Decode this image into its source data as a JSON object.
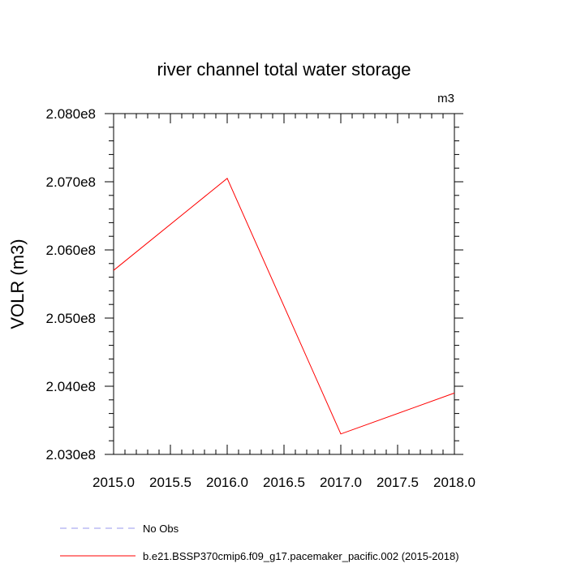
{
  "chart_data": {
    "type": "line",
    "title": "river channel total water storage",
    "unit_label": "m3",
    "ylabel": "VOLR  (m3)",
    "xlabel": "",
    "xlim": [
      2015.0,
      2018.0
    ],
    "ylim": [
      203000000,
      208000000
    ],
    "x_ticks": [
      2015.0,
      2015.5,
      2016.0,
      2016.5,
      2017.0,
      2017.5,
      2018.0
    ],
    "x_tick_labels": [
      "2015.0",
      "2015.5",
      "2016.0",
      "2016.5",
      "2017.0",
      "2017.5",
      "2018.0"
    ],
    "y_ticks": [
      203000000,
      204000000,
      205000000,
      206000000,
      207000000,
      208000000
    ],
    "y_tick_labels": [
      "2.030e8",
      "2.040e8",
      "2.050e8",
      "2.060e8",
      "2.070e8",
      "2.080e8"
    ],
    "grid": false,
    "legend_position": "bottom",
    "series": [
      {
        "name": "No Obs",
        "color": "#9999ee",
        "dash": "dashed",
        "x": [],
        "y": []
      },
      {
        "name": "b.e21.BSSP370cmip6.f09_g17.pacemaker_pacific.002 (2015-2018)",
        "color": "#ff0000",
        "dash": "solid",
        "x": [
          2015.0,
          2016.0,
          2017.0,
          2018.0
        ],
        "y": [
          205700000,
          207050000,
          203300000,
          203900000
        ]
      }
    ]
  }
}
